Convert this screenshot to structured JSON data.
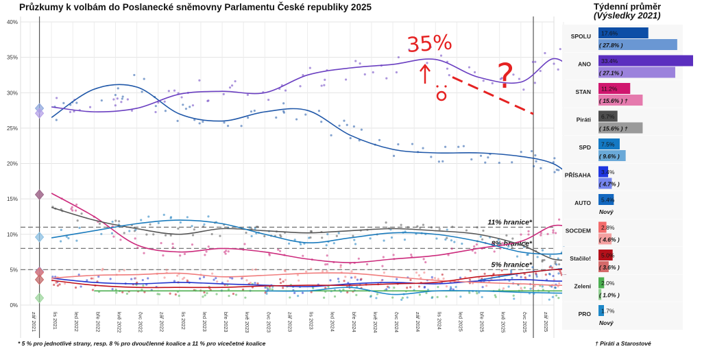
{
  "title": "Průzkumy k volbám do Poslanecké sněmovny Parlamentu České republiky 2025",
  "side_title": "Týdenní průměr",
  "side_subtitle": "(Výsledky 2021)",
  "footnote": "* 5 % pro jednotlivé strany, resp. 8 % pro dvoučlenné koalice a 11 % pro vícečetné koalice",
  "side_footnote": "† Piráti a Starostové",
  "annotations": {
    "handwritten_value": "35%",
    "handwritten_question": "?"
  },
  "colors": {
    "SPOLU": "#1f57a8",
    "ANO": "#6a3fc1",
    "STAN": "#cc2a7c",
    "Pirati": "#555555",
    "SPD": "#1a7bbd",
    "PRISAHA": "#2233cc",
    "AUTO": "#1565c0",
    "SOCDEM": "#f07d7d",
    "Stacilo": "#c0111b",
    "Zeleni": "#4caf50",
    "PRO": "#1e88c8",
    "annotation": "#e52222"
  },
  "chart_data": {
    "type": "line",
    "title": "Průzkumy k volbám do Poslanecké sněmovny Parlamentu České republiky 2025",
    "ylim": [
      0,
      40
    ],
    "yticks": [
      "0%",
      "5%",
      "10%",
      "15%",
      "20%",
      "25%",
      "30%",
      "35%",
      "40%"
    ],
    "x_tick_labels": [
      "zář 2021",
      "lis 2021",
      "led 2022",
      "bře 2022",
      "kvě 2022",
      "čvc 2022",
      "zář 2022",
      "lis 2022",
      "led 2023",
      "bře 2023",
      "kvě 2023",
      "čvc 2023",
      "zář 2023",
      "lis 2023",
      "led 2024",
      "bře 2024",
      "kvě 2024",
      "čvc 2024",
      "zář 2024",
      "lis 2024",
      "led 2025",
      "bře 2025",
      "kvě 2025",
      "čvc 2025",
      "zář 2025",
      "lis 2025"
    ],
    "thresholds": [
      {
        "value": 11,
        "label": "11% hranice*"
      },
      {
        "value": 8,
        "label": "8% hranice*"
      },
      {
        "value": 5,
        "label": "5% hranice*"
      }
    ],
    "series": [
      {
        "name": "SPOLU",
        "values": [
          26.5,
          30.5,
          30.8,
          27.0,
          26.0,
          27.3,
          27.5,
          24.0,
          22.0,
          21.5,
          21.5,
          21.0,
          20.0,
          17.8
        ]
      },
      {
        "name": "ANO",
        "values": [
          28.0,
          27.3,
          27.8,
          29.8,
          30.2,
          30.0,
          32.5,
          33.5,
          34.0,
          34.7,
          32.2,
          31.5,
          34.8,
          33.0
        ]
      },
      {
        "name": "STAN",
        "values": [
          15.8,
          12.5,
          8.5,
          7.5,
          8.0,
          7.5,
          6.5,
          6.0,
          6.5,
          7.0,
          8.0,
          9.0,
          11.2,
          10.8
        ]
      },
      {
        "name": "Piráti",
        "values": [
          13.8,
          12.0,
          10.8,
          10.0,
          10.8,
          10.5,
          10.2,
          10.5,
          10.8,
          10.5,
          10.0,
          8.5,
          6.5,
          6.5
        ]
      },
      {
        "name": "SPD",
        "values": [
          9.5,
          10.5,
          11.5,
          12.0,
          11.5,
          10.0,
          8.8,
          9.5,
          10.2,
          10.0,
          9.0,
          7.5,
          7.2,
          7.5
        ]
      },
      {
        "name": "PŘÍSAHA",
        "values": [
          3.8,
          3.2,
          3.0,
          3.2,
          3.0,
          2.8,
          2.6,
          3.0,
          3.2,
          3.0,
          3.4,
          3.6,
          3.4,
          3.4
        ]
      },
      {
        "name": "AUTO",
        "values": [
          null,
          null,
          null,
          null,
          null,
          null,
          null,
          null,
          null,
          null,
          3.5,
          4.5,
          5.0,
          5.4
        ]
      },
      {
        "name": "SOCDEM",
        "values": [
          3.8,
          4.2,
          4.3,
          4.5,
          4.0,
          4.2,
          4.5,
          4.5,
          4.0,
          3.5,
          3.2,
          3.0,
          2.8,
          2.8
        ]
      },
      {
        "name": "Stačilo!",
        "values": [
          3.5,
          2.8,
          2.5,
          2.5,
          2.5,
          2.7,
          2.8,
          2.8,
          3.0,
          3.2,
          4.0,
          4.5,
          5.0,
          5.0
        ]
      },
      {
        "name": "Zelení",
        "values": [
          null,
          2.0,
          2.0,
          2.0,
          2.0,
          2.0,
          2.0,
          2.0,
          2.0,
          2.0,
          2.0,
          2.0,
          2.0,
          2.0
        ]
      },
      {
        "name": "PRO",
        "values": [
          null,
          null,
          null,
          null,
          null,
          2.0,
          2.0,
          2.5,
          1.5,
          2.0,
          2.0,
          1.8,
          1.7,
          1.7
        ]
      }
    ],
    "series_x_months": [
      2,
      6,
      10,
      14,
      18,
      22,
      26,
      30,
      34,
      38,
      42,
      46,
      49,
      51
    ],
    "election_results_2021": {
      "SPOLU": 27.8,
      "ANO": 27.1,
      "STAN": 15.6,
      "Pirati": 15.6,
      "SPD": 9.6,
      "PRISAHA": 4.7,
      "SOCDEM": 4.6,
      "Stacilo": 3.6,
      "Zeleni": 1.0
    },
    "projection": {
      "label": "?",
      "values": [
        34.5,
        27.0
      ]
    }
  },
  "weekly_average": [
    {
      "party": "SPOLU",
      "value": 17.6,
      "value_label": "17.6%",
      "result": 27.8,
      "result_label": "( 27.8% )",
      "color": "#0d4ea6",
      "color2": "#6a97d3"
    },
    {
      "party": "ANO",
      "value": 33.4,
      "value_label": "33.4%",
      "result": 27.1,
      "result_label": "( 27.1% )",
      "color": "#5b2fbf",
      "color2": "#9b82dc"
    },
    {
      "party": "STAN",
      "value": 11.2,
      "value_label": "11.2%",
      "result": 15.6,
      "result_label": "( 15.6% ) †",
      "color": "#d0166e",
      "color2": "#e57aad"
    },
    {
      "party": "Piráti",
      "value": 6.7,
      "value_label": "6.7%",
      "result": 15.6,
      "result_label": "( 15.6% ) †",
      "color": "#4d4d4d",
      "color2": "#9a9a9a"
    },
    {
      "party": "SPD",
      "value": 7.5,
      "value_label": "7.5%",
      "result": 9.6,
      "result_label": "( 9.6% )",
      "color": "#1479c4",
      "color2": "#6aa9d8"
    },
    {
      "party": "PŘÍSAHA",
      "value": 3.4,
      "value_label": "3.4%",
      "result": 4.7,
      "result_label": "( 4.7% )",
      "color": "#1f35e0",
      "color2": "#7484ee"
    },
    {
      "party": "AUTO",
      "value": 5.4,
      "value_label": "5.4%",
      "result": null,
      "result_label": "Nový",
      "color": "#1368c0",
      "color2": "#1368c0"
    },
    {
      "party": "SOCDEM",
      "value": 2.8,
      "value_label": "2.8%",
      "result": 4.6,
      "result_label": "( 4.6% )",
      "color": "#f26a6a",
      "color2": "#f4a0a0"
    },
    {
      "party": "Stačilo!",
      "value": 5.0,
      "value_label": "5.0%",
      "result": 3.6,
      "result_label": "( 3.6% )",
      "color": "#b4101a",
      "color2": "#d46a6a"
    },
    {
      "party": "Zelení",
      "value": 2.0,
      "value_label": "2.0%",
      "result": 1.0,
      "result_label": "( 1.0% )",
      "color": "#4caf50",
      "color2": "#8fcf8f"
    },
    {
      "party": "PRO",
      "value": 1.7,
      "value_label": "1.7%",
      "result": null,
      "result_label": "Nový",
      "color": "#1e88c8",
      "color2": "#1e88c8"
    }
  ]
}
